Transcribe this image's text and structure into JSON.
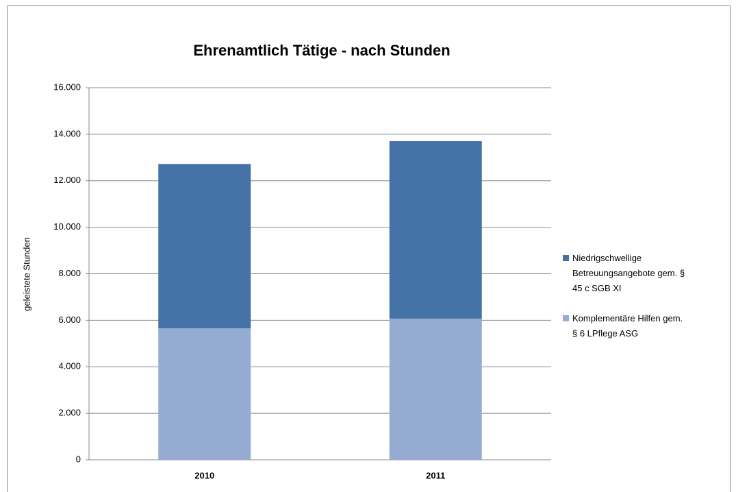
{
  "chart_data": {
    "type": "stacked_bar",
    "title": "Ehrenamtlich Tätige - nach Stunden",
    "y_label": "geleistete Stunden",
    "categories": [
      "2010",
      "2011"
    ],
    "series": [
      {
        "name": "Komplementäre Hilfen gem. § 6 LPflege ASG",
        "color": "#96abd2",
        "values": [
          5650,
          6070
        ]
      },
      {
        "name": "Niedrigschwellige Betreuungsangebote gem. § 45 c SGB XI",
        "color": "#4573a7",
        "values": [
          7070,
          7630
        ]
      }
    ],
    "ylim": [
      0,
      16000
    ],
    "yticks": [
      0,
      {
        "value": 2000,
        "label": "2.000"
      },
      {
        "value": 4000,
        "label": "4.000"
      },
      {
        "value": 6000,
        "label": "6.000"
      },
      {
        "value": 8000,
        "label": "8.000"
      },
      {
        "value": 10000,
        "label": "10.000"
      },
      {
        "value": 12000,
        "label": "12.000"
      },
      {
        "value": 14000,
        "label": "14.000"
      },
      {
        "value": 16000,
        "label": "16.000"
      }
    ],
    "grid": true,
    "legend": "right"
  }
}
